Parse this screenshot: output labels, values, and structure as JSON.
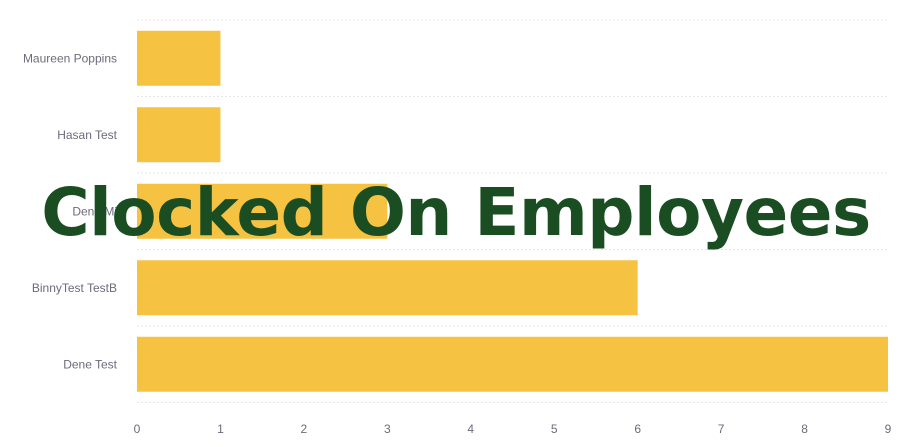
{
  "chart_data": {
    "type": "bar",
    "orientation": "horizontal",
    "categories": [
      "Maureen Poppins",
      "Hasan Test",
      "Dene Mi",
      "BinnyTest TestB",
      "Dene Test"
    ],
    "values": [
      1,
      1,
      3,
      6,
      9
    ],
    "xlim": [
      0,
      9
    ],
    "x_ticks": [
      0,
      1,
      2,
      3,
      4,
      5,
      6,
      7,
      8,
      9
    ],
    "bar_color": "#f5c242",
    "grid": "horizontal dashed",
    "title": "Clocked On Employees"
  },
  "colors": {
    "bar": "#f5c242",
    "title": "#1a4d22",
    "label": "#6b6b7b",
    "grid": "#e6e6e6"
  }
}
